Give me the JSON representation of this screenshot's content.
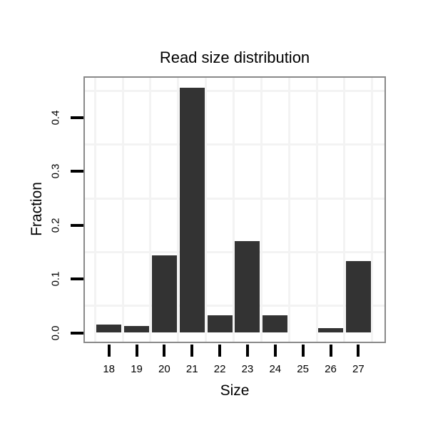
{
  "chart_data": {
    "type": "bar",
    "title": "Read size distribution",
    "xlabel": "Size",
    "ylabel": "Fraction",
    "categories": [
      "18",
      "19",
      "20",
      "21",
      "22",
      "23",
      "24",
      "25",
      "26",
      "27"
    ],
    "values": [
      0.015,
      0.013,
      0.144,
      0.455,
      0.032,
      0.171,
      0.032,
      0,
      0.008,
      0.133
    ],
    "y_tick_labels": [
      "0.0",
      "0.1",
      "0.2",
      "0.3",
      "0.4"
    ],
    "y_tick_values": [
      0,
      0.1,
      0.2,
      0.3,
      0.4
    ],
    "minor_gridlines_y": [
      0.05,
      0.15,
      0.25,
      0.35,
      0.45
    ],
    "ylim": [
      -0.019,
      0.477
    ],
    "grid": "faint minor gridlines only, vertical lines at category boundaries",
    "legend_position": "none",
    "colors": {
      "bar": "#333333",
      "panel_border": "#898989",
      "gridline": "#f3f3f3",
      "tick": "#000000",
      "text": "#000000",
      "background": "#ffffff"
    }
  }
}
